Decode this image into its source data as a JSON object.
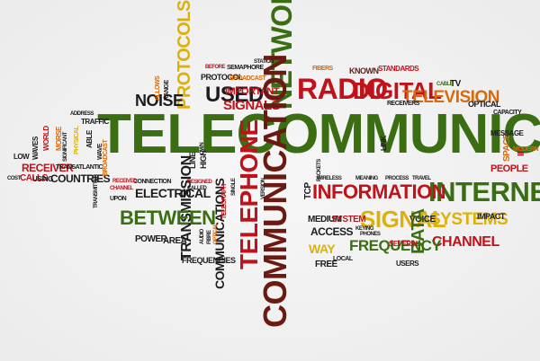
{
  "colors": {
    "green": "#3b6e12",
    "red": "#c0121a",
    "orange": "#d86a0a",
    "yellow": "#dcb10c",
    "dark": "#1c1c1c",
    "maroon": "#6a1a10"
  },
  "words": {
    "telecommunication": "TELECOMMUNICATION",
    "network": "NETWORK",
    "radio": "RADIO",
    "digital": "DIGITAL",
    "television": "TELEVISION",
    "used": "USED",
    "signals": "SIGNALS",
    "important": "IMPORTANT",
    "protocols": "PROTOCOLS",
    "noise": "NOISE",
    "information": "INFORMATION",
    "internet": "INTERNET",
    "signal": "SIGNAL",
    "systems": "SYSTEMS",
    "channel": "CHANNEL",
    "data": "DATA",
    "communication": "COMMUNICATION",
    "telephone": "TELEPHONE",
    "communications": "COMMUNICATIONS",
    "transmission": "TRANSMISSION",
    "between": "BETWEEN",
    "electrical": "ELECTRICAL",
    "frequency": "FREQUENCY",
    "frequencies": "FREQUENCIES",
    "medium": "MEDIUM",
    "system": "SYSTEM",
    "access": "ACCESS",
    "way": "WAY",
    "free": "FREE",
    "voice": "VOICE",
    "impact": "IMPACT",
    "several": "SEVERAL",
    "users": "USERS",
    "power": "POWER",
    "area": "AREA",
    "receiver": "RECEIVER",
    "countries": "COUNTRIES",
    "calls": "CALLS",
    "using": "USING",
    "low": "LOW",
    "telegraph": "TELEGRAPH",
    "people": "PEOPLE",
    "message": "MESSAGE",
    "space": "SPACE",
    "optical": "OPTICAL",
    "tcp": "TCP",
    "protocol": "PROTOCOL",
    "known": "KNOWN",
    "standards": "STANDARDS",
    "tv": "TV",
    "cable": "CABLE",
    "fibers": "FIBERS",
    "semaphore": "SEMAPHORE",
    "broadcast": "BROADCAST",
    "traffic": "TRAFFIC",
    "line": "LINE",
    "high": "HIGH",
    "link": "LINK",
    "wireless": "WIRELESS",
    "ip": "IP",
    "modern": "MODERN",
    "phones": "PHONES",
    "packets": "PACKETS",
    "process": "PROCESS",
    "keying": "KEYING",
    "world": "WORLD",
    "waves": "WAVES",
    "morse": "MORSE",
    "able": "ABLE",
    "connection": "CONNECTION",
    "version": "VERSION",
    "single": "SINGLE",
    "audio": "AUDIO",
    "fibre": "FIBRE",
    "station": "STATION",
    "before": "BEFORE",
    "transatlantic": "TRANSATLANTIC",
    "significant": "SIGNIFICANT",
    "physical": "PHYSICAL",
    "range": "RANGE",
    "allows": "ALLOWS",
    "capacity": "CAPACITY",
    "local": "LOCAL",
    "wave": "WAVE",
    "upon": "UPON",
    "received": "RECEIVED",
    "designed": "DESIGNED",
    "called": "CALLED",
    "wide": "WIDE",
    "own": "OWN",
    "receivers": "RECEIVERS",
    "meaning": "MEANING",
    "travel": "TRAVEL",
    "receiving": "RECEIVING",
    "world_wide": "WORLDWIDE",
    "transmitter": "TRANSMITTER",
    "address": "ADDRESS",
    "cost": "COST"
  }
}
